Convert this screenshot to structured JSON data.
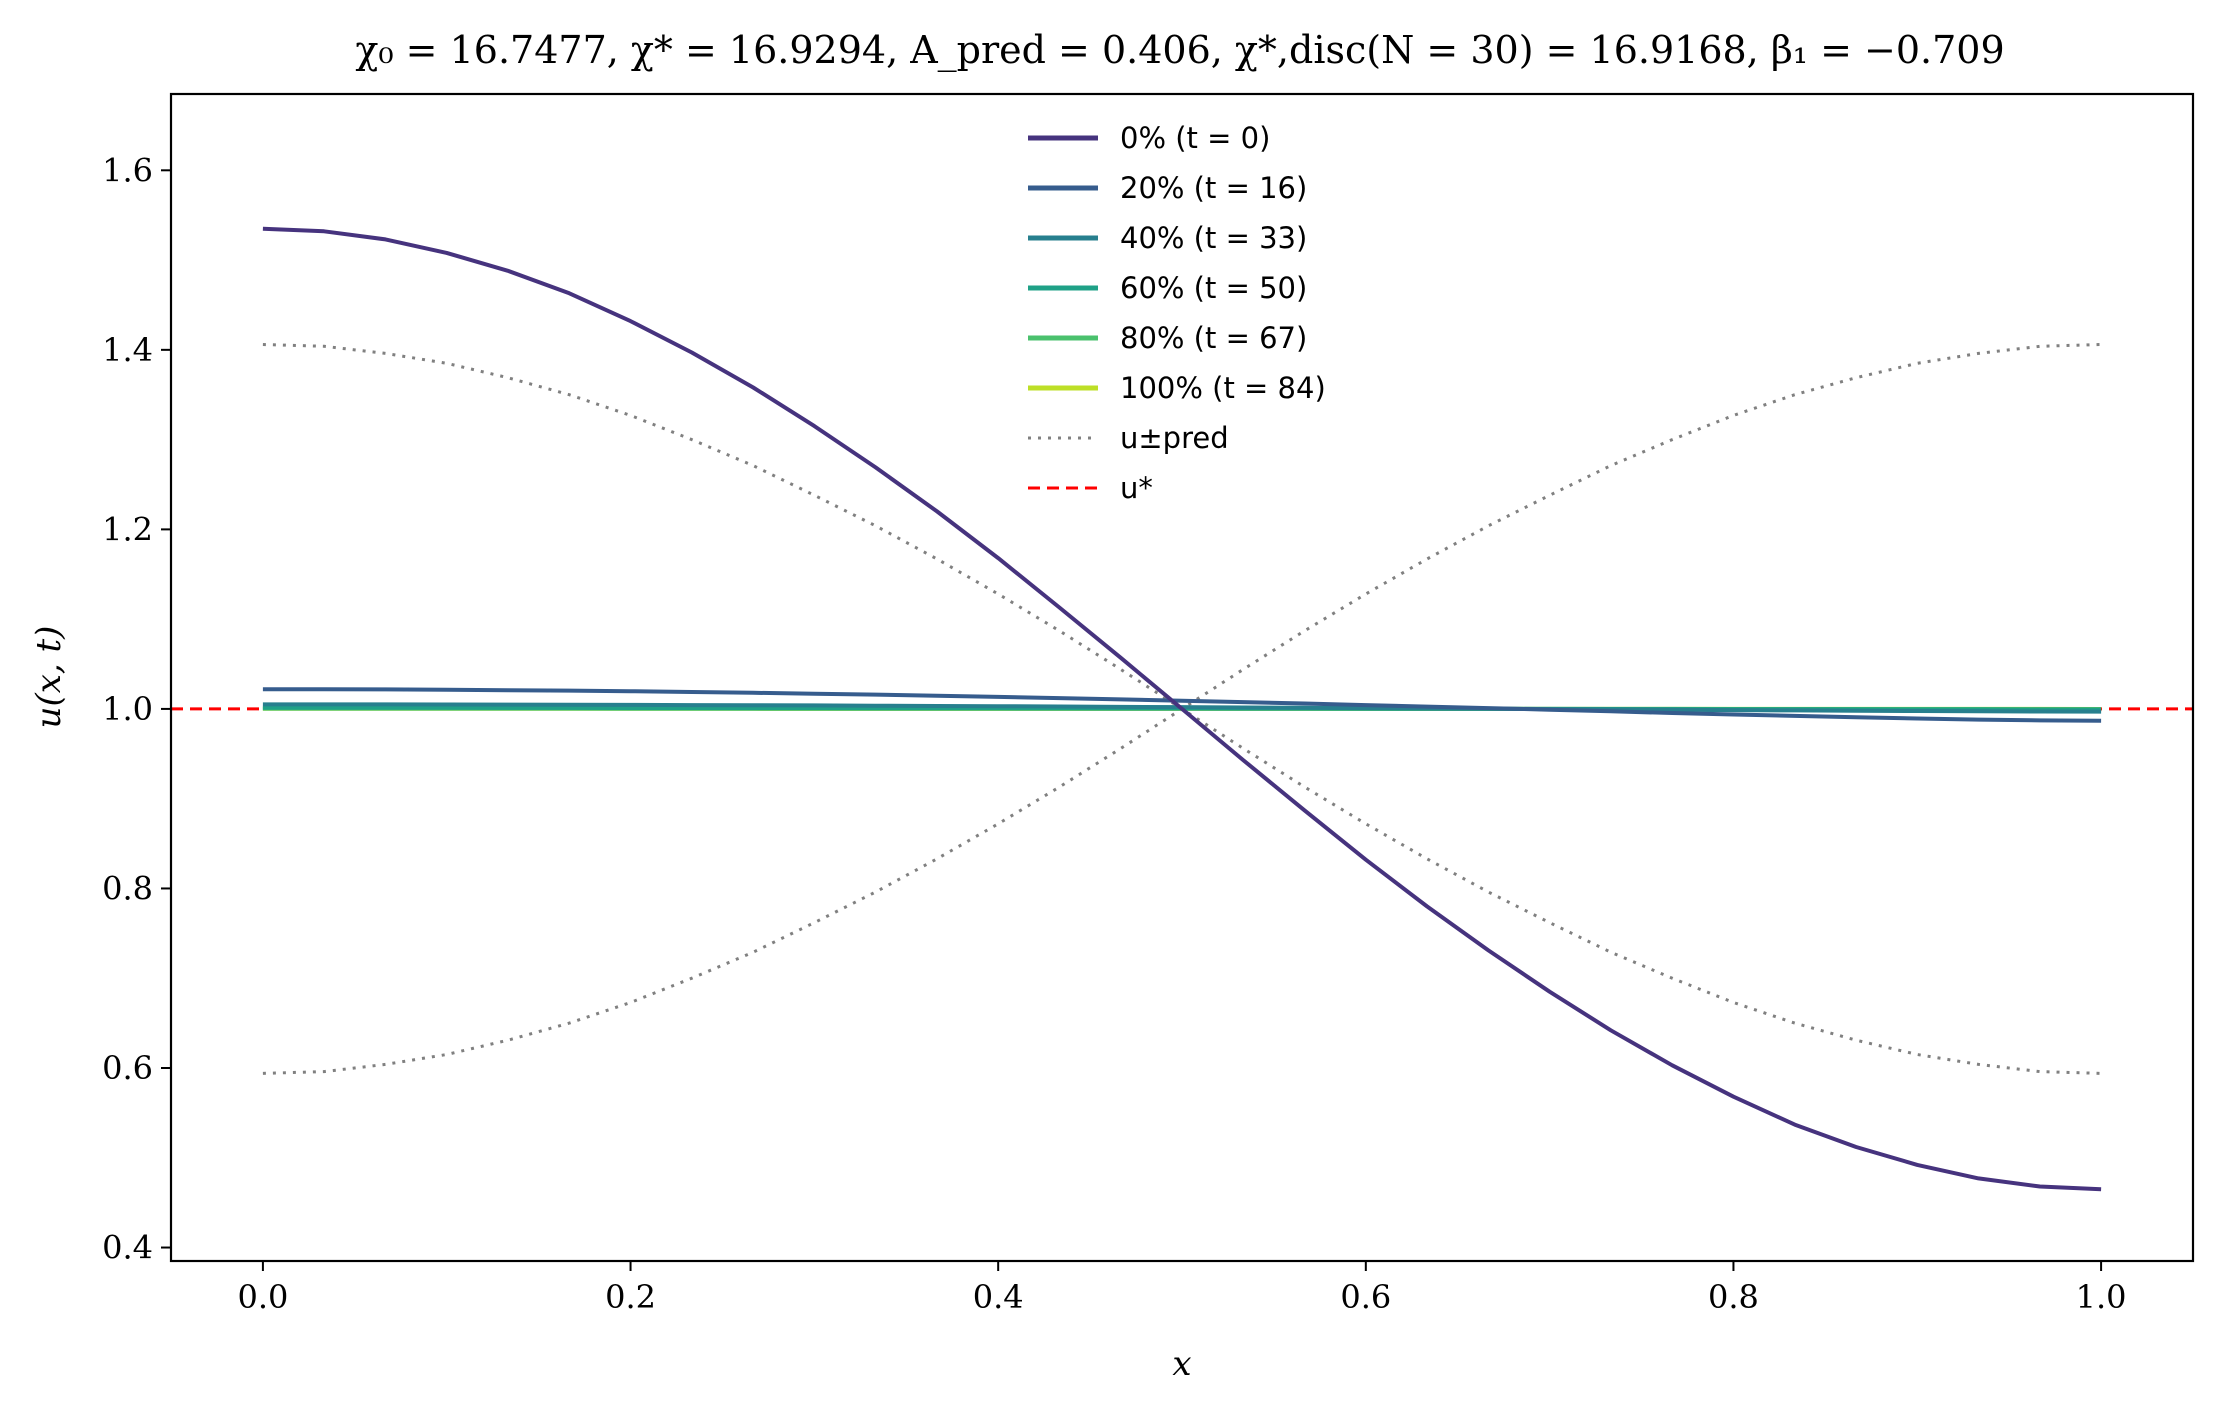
{
  "chart_data": {
    "type": "line",
    "title": "χ₀ = 16.7477,  χ* = 16.9294,  A_pred = 0.406,  χ*,disc(N = 30) = 16.9168,  β₁ = −0.709",
    "xlabel": "x",
    "ylabel": "u(x, t)",
    "xlim": [
      -0.05,
      1.05
    ],
    "ylim": [
      0.385,
      1.685
    ],
    "xticks": [
      "0.0",
      "0.2",
      "0.4",
      "0.6",
      "0.8",
      "1.0"
    ],
    "yticks": [
      "0.4",
      "0.6",
      "0.8",
      "1.0",
      "1.2",
      "1.4",
      "1.6"
    ],
    "grid": false,
    "legend_position": "top-center",
    "x": [
      0.0,
      0.0333,
      0.0667,
      0.1,
      0.1333,
      0.1667,
      0.2,
      0.2333,
      0.2667,
      0.3,
      0.3333,
      0.3667,
      0.4,
      0.4333,
      0.4667,
      0.5,
      0.5333,
      0.5667,
      0.6,
      0.6333,
      0.6667,
      0.7,
      0.7333,
      0.7667,
      0.8,
      0.8333,
      0.8667,
      0.9,
      0.9333,
      0.9667,
      1.0
    ],
    "series": [
      {
        "name": "0% (t = 0)",
        "color": "#46337e",
        "style": "solid",
        "values": [
          1.535,
          1.532,
          1.523,
          1.508,
          1.488,
          1.463,
          1.432,
          1.397,
          1.358,
          1.315,
          1.269,
          1.22,
          1.168,
          1.113,
          1.057,
          1.0,
          0.943,
          0.887,
          0.832,
          0.78,
          0.731,
          0.685,
          0.642,
          0.603,
          0.568,
          0.537,
          0.512,
          0.492,
          0.477,
          0.468,
          0.465
        ]
      },
      {
        "name": "20% (t = 16)",
        "color": "#365c8d",
        "style": "solid",
        "values": [
          1.022,
          1.0219,
          1.0217,
          1.0214,
          1.0209,
          1.0204,
          1.0197,
          1.0189,
          1.018,
          1.017,
          1.0159,
          1.0147,
          1.0134,
          1.0121,
          1.0106,
          1.0091,
          1.0076,
          1.006,
          1.0043,
          1.0026,
          1.0009,
          0.9991,
          0.9973,
          0.9955,
          0.9938,
          0.9922,
          0.9907,
          0.9893,
          0.9881,
          0.9872,
          0.9868
        ]
      },
      {
        "name": "40% (t = 33)",
        "color": "#277f8e",
        "style": "solid",
        "values": [
          1.005,
          1.005,
          1.005,
          1.0049,
          1.0048,
          1.0047,
          1.0045,
          1.0043,
          1.0041,
          1.0039,
          1.0036,
          1.0033,
          1.003,
          1.0027,
          1.0023,
          1.002,
          1.0016,
          1.0013,
          1.0009,
          1.0005,
          1.0002,
          0.9998,
          0.9994,
          0.9991,
          0.9987,
          0.9984,
          0.998,
          0.9977,
          0.9974,
          0.9971,
          0.997
        ]
      },
      {
        "name": "60% (t = 50)",
        "color": "#1fa187",
        "style": "solid",
        "values": [
          1.0012,
          1.0012,
          1.0012,
          1.0012,
          1.0011,
          1.0011,
          1.001,
          1.001,
          1.0009,
          1.0009,
          1.0008,
          1.0008,
          1.0007,
          1.0006,
          1.0005,
          1.0005,
          1.0004,
          1.0003,
          1.0002,
          1.0001,
          1.0001,
          1.0,
          0.9999,
          0.9998,
          0.9997,
          0.9996,
          0.9995,
          0.9994,
          0.9994,
          0.9993,
          0.9993
        ]
      },
      {
        "name": "80% (t = 67)",
        "color": "#4ac16d",
        "style": "solid",
        "values": [
          1.0003,
          1.0003,
          1.0003,
          1.0003,
          1.0003,
          1.0003,
          1.0002,
          1.0002,
          1.0002,
          1.0002,
          1.0002,
          1.0002,
          1.0002,
          1.0001,
          1.0001,
          1.0001,
          1.0001,
          1.0001,
          1.0001,
          1.0,
          1.0,
          1.0,
          1.0,
          1.0,
          0.9999,
          0.9999,
          0.9999,
          0.9999,
          0.9999,
          0.9998,
          0.9998
        ]
      },
      {
        "name": "100% (t = 84)",
        "color": "#bddf26",
        "style": "solid",
        "values": [
          1.0001,
          1.0001,
          1.0001,
          1.0001,
          1.0001,
          1.0001,
          1.0001,
          1.0001,
          1.0001,
          1.0,
          1.0,
          1.0,
          1.0,
          1.0,
          1.0,
          1.0,
          1.0,
          1.0,
          1.0,
          1.0,
          1.0,
          1.0,
          1.0,
          1.0,
          1.0,
          1.0,
          1.0,
          1.0,
          1.0,
          1.0,
          0.9999
        ]
      },
      {
        "name": "u±pred",
        "color": "#808080",
        "style": "dotted",
        "values": [
          1.406,
          1.404,
          1.396,
          1.385,
          1.369,
          1.35,
          1.327,
          1.3,
          1.271,
          1.238,
          1.204,
          1.167,
          1.128,
          1.087,
          1.044,
          1.0,
          0.956,
          0.913,
          0.872,
          0.833,
          0.796,
          0.762,
          0.729,
          0.7,
          0.673,
          0.65,
          0.631,
          0.615,
          0.604,
          0.596,
          0.594
        ],
        "mirror_values": [
          0.594,
          0.596,
          0.604,
          0.615,
          0.631,
          0.65,
          0.673,
          0.7,
          0.729,
          0.762,
          0.796,
          0.833,
          0.872,
          0.913,
          0.956,
          1.0,
          1.044,
          1.087,
          1.128,
          1.167,
          1.204,
          1.238,
          1.271,
          1.3,
          1.327,
          1.35,
          1.369,
          1.385,
          1.396,
          1.404,
          1.406
        ]
      },
      {
        "name": "u*",
        "color": "#ff0000",
        "style": "dashed",
        "hline": 1.0
      }
    ]
  }
}
